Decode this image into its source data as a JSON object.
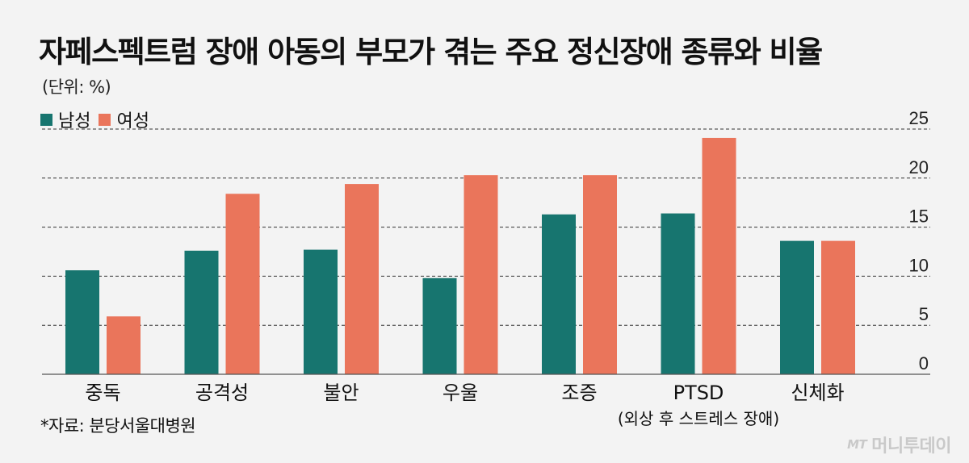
{
  "title": "자페스펙트럼 장애 아동의 부모가 겪는 주요 정신장애 종류와 비율",
  "unit": "(단위: %)",
  "source": "*자료: 분당서울대병원",
  "logo": {
    "mark": "MT",
    "name": "머니투데이"
  },
  "colors": {
    "male": "#17756f",
    "female": "#ea755b",
    "grid": "#333333",
    "axis": "#555555"
  },
  "chart_data": {
    "type": "bar",
    "title": "자페스펙트럼 장애 아동의 부모가 겪는 주요 정신장애 종류와 비율",
    "categories": [
      "중독",
      "공격성",
      "불안",
      "우울",
      "조증",
      "PTSD",
      "신체화"
    ],
    "category_sublabels": [
      "",
      "",
      "",
      "",
      "",
      "(외상 후 스트레스 장애)",
      ""
    ],
    "series": [
      {
        "name": "남성",
        "values": [
          10.6,
          12.6,
          12.7,
          9.8,
          16.3,
          16.4,
          13.6
        ]
      },
      {
        "name": "여성",
        "values": [
          5.9,
          18.4,
          19.4,
          20.3,
          20.3,
          24.1,
          13.6
        ]
      }
    ],
    "y_ticks": [
      "0",
      "5",
      "10",
      "15",
      "20",
      "25"
    ],
    "ylim": [
      0,
      25
    ],
    "y_axis_side": "right",
    "grid": "dashed horizontal",
    "legend": "top-left",
    "xlabel": "",
    "ylabel": ""
  }
}
